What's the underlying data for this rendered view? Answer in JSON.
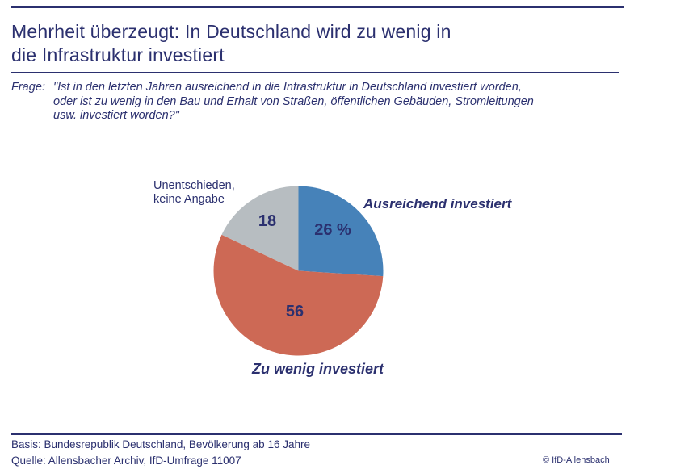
{
  "page": {
    "title_line1": "Mehrheit überzeugt: In Deutschland wird zu wenig in",
    "title_line2": "die Infrastruktur investiert",
    "question_label": "Frage:",
    "question_line1": "\"Ist in den letzten Jahren ausreichend in die Infrastruktur in Deutschland investiert worden,",
    "question_line2": "oder ist zu wenig in den Bau und Erhalt von Straßen, öffentlichen Gebäuden, Stromleitungen",
    "question_line3": "usw. investiert worden?\"",
    "footer_basis": "Basis: Bundesrepublik Deutschland, Bevölkerung ab 16 Jahre",
    "footer_quelle": "Quelle: Allensbacher Archiv, IfD-Umfrage 11007",
    "copyright": "© IfD-Allensbach"
  },
  "colors": {
    "navy_text": "#2B306F",
    "slice_blue": "#4682B9",
    "slice_red": "#CD6955",
    "slice_gray": "#B7BDC1"
  },
  "chart_data": {
    "type": "pie",
    "title": "Mehrheit überzeugt: In Deutschland wird zu wenig in die Infrastruktur investiert",
    "unit": "%",
    "start_at": "12-oclock",
    "direction": "clockwise",
    "legend_position": "around-pie",
    "slices": [
      {
        "label": "Ausreichend investiert",
        "value": 26,
        "display": "26 %",
        "color": "#4682B9",
        "label_lines": [
          "Ausreichend investiert"
        ]
      },
      {
        "label": "Zu wenig investiert",
        "value": 56,
        "display": "56",
        "color": "#CD6955",
        "label_lines": [
          "Zu wenig investiert"
        ]
      },
      {
        "label": "Unentschieden, keine Angabe",
        "value": 18,
        "display": "18",
        "color": "#B7BDC1",
        "label_lines": [
          "Unentschieden,",
          "keine Angabe"
        ]
      }
    ]
  }
}
